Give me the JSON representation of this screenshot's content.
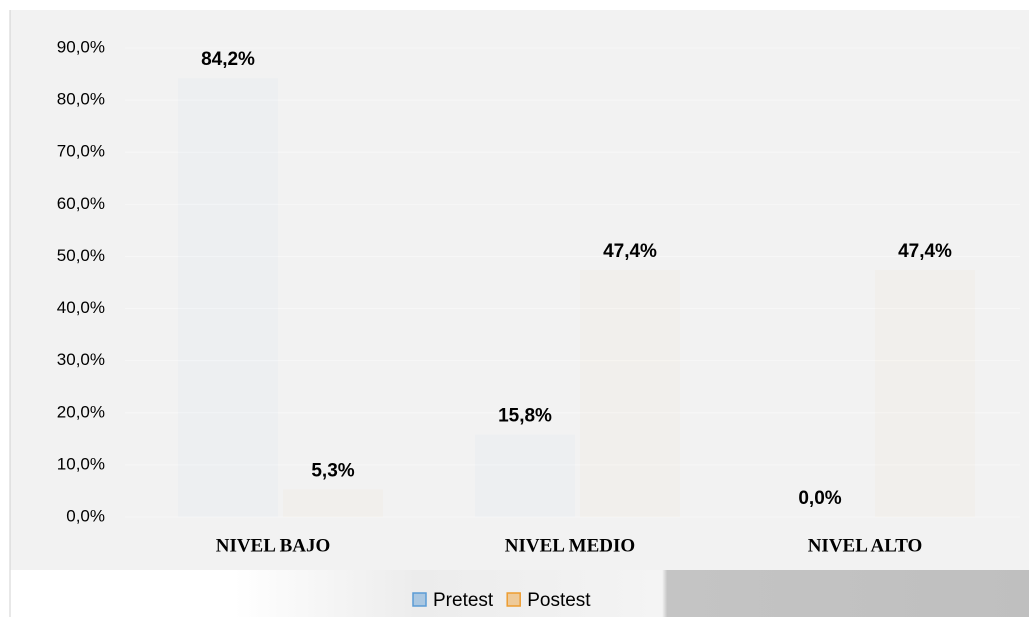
{
  "chart_data": {
    "type": "bar",
    "categories": [
      "NIVEL BAJO",
      "NIVEL MEDIO",
      "NIVEL ALTO"
    ],
    "series": [
      {
        "name": "Pretest",
        "color": "#5b9bd5",
        "values": [
          84.2,
          15.8,
          0.0
        ],
        "value_labels": [
          "84,2%",
          "15,8%",
          "0,0%"
        ]
      },
      {
        "name": "Postest",
        "color": "#ed9d31",
        "values": [
          5.3,
          47.4,
          47.4
        ],
        "value_labels": [
          "5,3%",
          "47,4%",
          "47,4%"
        ]
      }
    ],
    "ylim": [
      0,
      90
    ],
    "yticks": [
      {
        "value": 0,
        "label": "0,0%"
      },
      {
        "value": 10,
        "label": "10,0%"
      },
      {
        "value": 20,
        "label": "20,0%"
      },
      {
        "value": 30,
        "label": "30,0%"
      },
      {
        "value": 40,
        "label": "40,0%"
      },
      {
        "value": 50,
        "label": "50,0%"
      },
      {
        "value": 60,
        "label": "60,0%"
      },
      {
        "value": 70,
        "label": "70,0%"
      },
      {
        "value": 80,
        "label": "80,0%"
      },
      {
        "value": 90,
        "label": "90,0%"
      }
    ],
    "grid": true,
    "legend": "bottom"
  }
}
